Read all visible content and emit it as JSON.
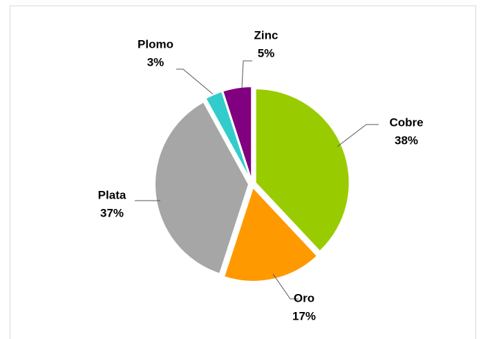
{
  "chart_data": {
    "type": "pie",
    "categories": [
      "Cobre",
      "Oro",
      "Plata",
      "Plomo",
      "Zinc"
    ],
    "values": [
      38,
      17,
      37,
      3,
      5
    ],
    "value_labels": [
      "38%",
      "17%",
      "37%",
      "3%",
      "5%"
    ],
    "colors": [
      "#99cc00",
      "#ff9900",
      "#a6a6a6",
      "#33cccc",
      "#800080"
    ]
  }
}
